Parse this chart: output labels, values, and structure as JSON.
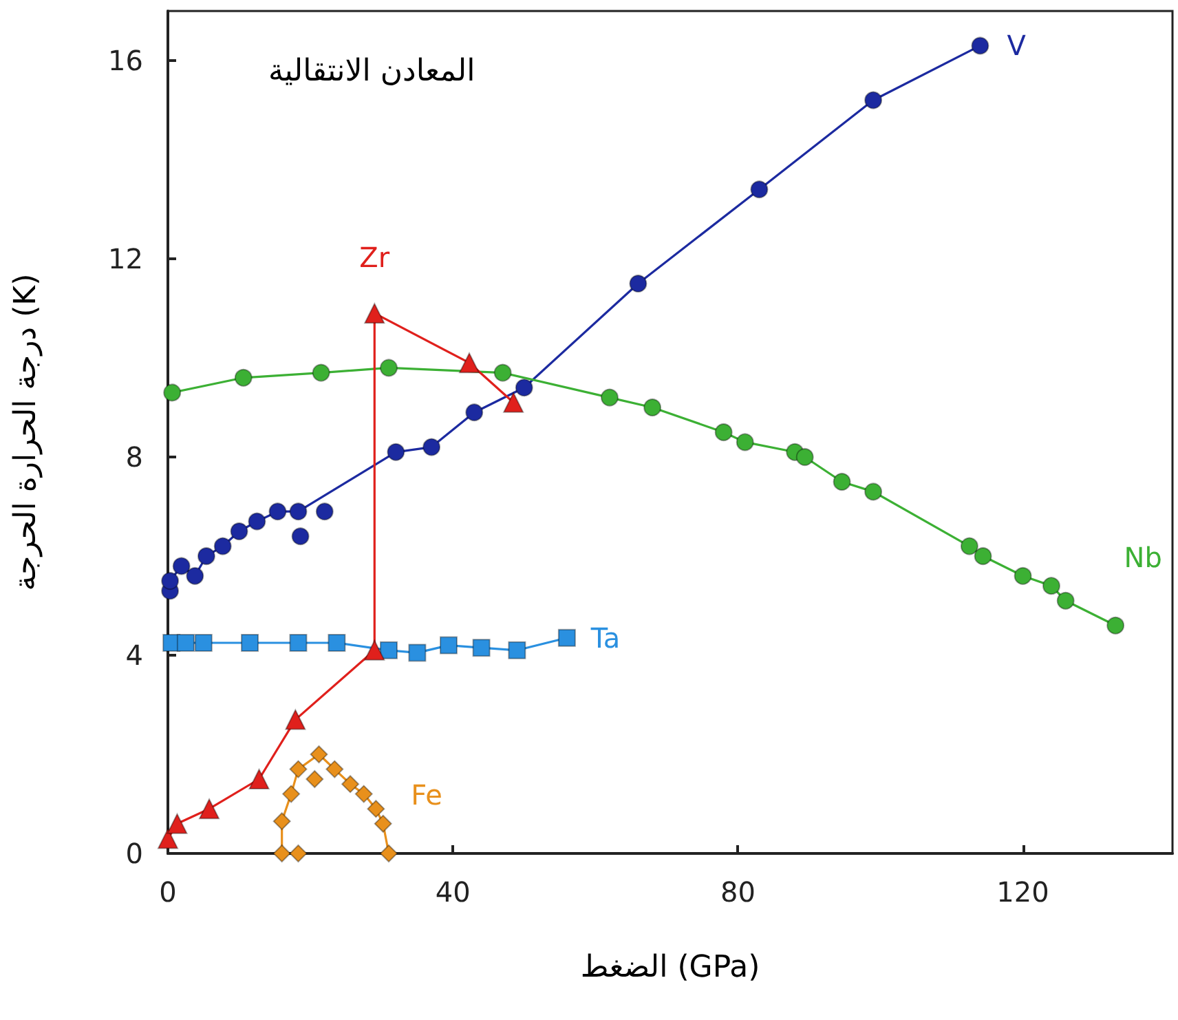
{
  "chart_data": {
    "type": "line",
    "title": "المعادن الانتقالية",
    "xlabel": "الضغط (GPa)",
    "ylabel": "درجة الحرارة الحرجة (K)",
    "xlim": [
      0,
      141
    ],
    "ylim": [
      0,
      17
    ],
    "xticks": [
      0,
      40,
      80,
      120
    ],
    "yticks": [
      0,
      4,
      8,
      12,
      16
    ],
    "grid": false,
    "legend": false,
    "series": [
      {
        "name": "V",
        "marker": "circle",
        "color": "#1c2aa0",
        "x": [
          0.3,
          0.3,
          1.9,
          3.8,
          5.4,
          7.7,
          10,
          12.5,
          15.4,
          18.3,
          32,
          37,
          43,
          50,
          66,
          83,
          99,
          114
        ],
        "values": [
          5.3,
          5.5,
          5.8,
          5.6,
          6.0,
          6.2,
          6.5,
          6.7,
          6.9,
          6.9,
          8.1,
          8.2,
          8.9,
          9.4,
          11.5,
          13.4,
          15.2,
          16.3
        ]
      },
      {
        "type": "scatter",
        "marker": "circle",
        "color": "#1c2aa0",
        "x": [
          18.6,
          22
        ],
        "values": [
          6.4,
          6.9
        ]
      },
      {
        "name": "Nb",
        "marker": "circle",
        "color": "#3cb034",
        "x": [
          0.6,
          10.6,
          21.5,
          31,
          47,
          62,
          68,
          78,
          81,
          88,
          89.4,
          94.6,
          99,
          112.5,
          114.4,
          120,
          124,
          126,
          133
        ],
        "values": [
          9.3,
          9.6,
          9.7,
          9.8,
          9.7,
          9.2,
          9.0,
          8.5,
          8.3,
          8.1,
          8.0,
          7.5,
          7.3,
          6.2,
          6.0,
          5.6,
          5.4,
          5.1,
          4.6
        ]
      },
      {
        "name": "Ta",
        "marker": "square",
        "color": "#2a90e0",
        "x": [
          0.5,
          2.5,
          5,
          11.5,
          18.3,
          23.7,
          31,
          35,
          39.4,
          44,
          49,
          56
        ],
        "values": [
          4.25,
          4.25,
          4.25,
          4.25,
          4.25,
          4.25,
          4.1,
          4.05,
          4.2,
          4.15,
          4.1,
          4.35
        ]
      },
      {
        "name": "Zr",
        "marker": "triangle",
        "color": "#e0201c",
        "x": [
          0,
          1.3,
          5.8,
          12.8,
          17.9,
          29,
          29,
          42.3,
          48.5
        ],
        "values": [
          0.3,
          0.6,
          0.9,
          1.5,
          2.7,
          4.1,
          10.9,
          9.9,
          9.1
        ]
      },
      {
        "name": "Fe",
        "marker": "diamond",
        "color": "#e8901c",
        "x": [
          16,
          16,
          17.3,
          18.3,
          21.2,
          23.4,
          25.6,
          27.5,
          29.2,
          30.2,
          31
        ],
        "values": [
          0,
          0.65,
          1.2,
          1.7,
          2.0,
          1.7,
          1.4,
          1.2,
          0.9,
          0.6,
          0
        ]
      },
      {
        "type": "scatter",
        "marker": "diamond",
        "color": "#e8901c",
        "x": [
          18.3,
          20.6
        ],
        "values": [
          0,
          1.5
        ]
      }
    ]
  }
}
